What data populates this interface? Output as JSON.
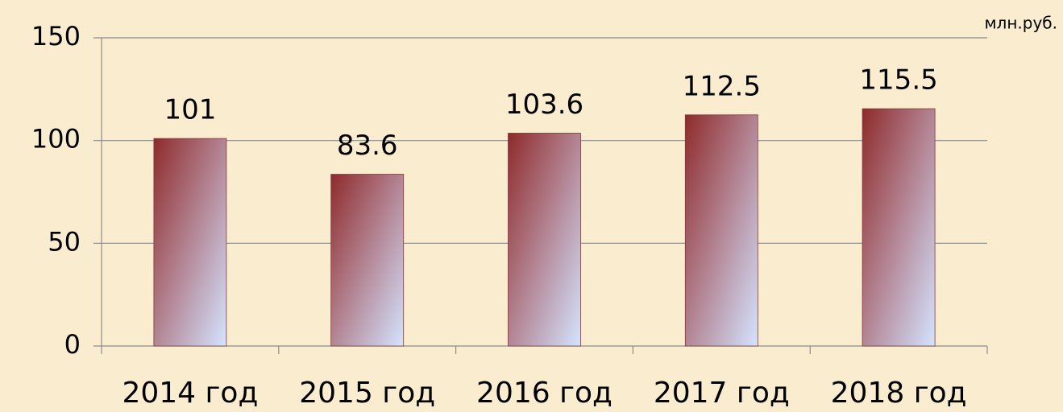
{
  "chart_data": {
    "type": "bar",
    "unit_label": "млн.руб.",
    "categories": [
      "2014 год",
      "2015 год",
      "2016 год",
      "2017 год",
      "2018 год"
    ],
    "values": [
      101,
      83.6,
      103.6,
      112.5,
      115.5
    ],
    "ylim": [
      0,
      150
    ],
    "yticks": [
      0,
      50,
      100,
      150
    ],
    "grid": true
  }
}
